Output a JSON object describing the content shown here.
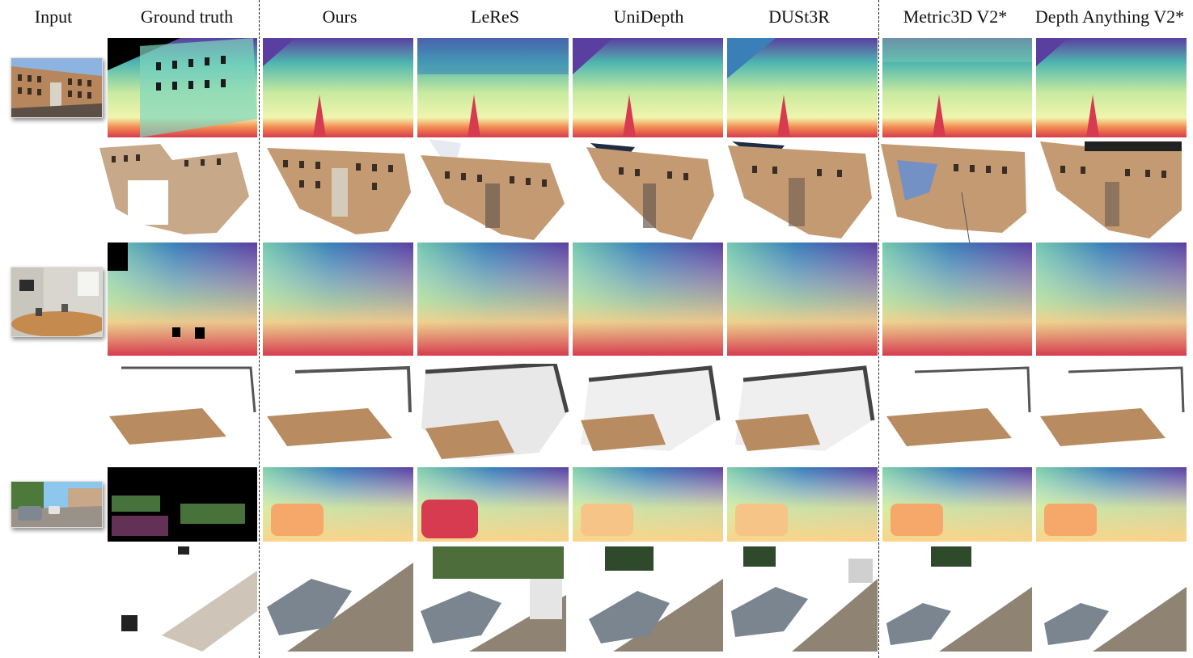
{
  "figure": {
    "column_headers": {
      "input": "Input",
      "ground_truth": "Ground truth",
      "ours": "Ours",
      "leres": "LeReS",
      "unidepth": "UniDepth",
      "dust3r": "DUSt3R",
      "metric3d": "Metric3D V2*",
      "depth_anything": "Depth Anything V2*"
    },
    "scenes": [
      "building-facade",
      "office-room",
      "street-car"
    ],
    "row_kinds": [
      "depth-map",
      "point-cloud"
    ],
    "colormap": [
      "#5b3fa0",
      "#3a7fb8",
      "#4fb7b0",
      "#9ad8a0",
      "#e6f2a2",
      "#fbd38a",
      "#f3894f",
      "#d63b4f"
    ]
  }
}
